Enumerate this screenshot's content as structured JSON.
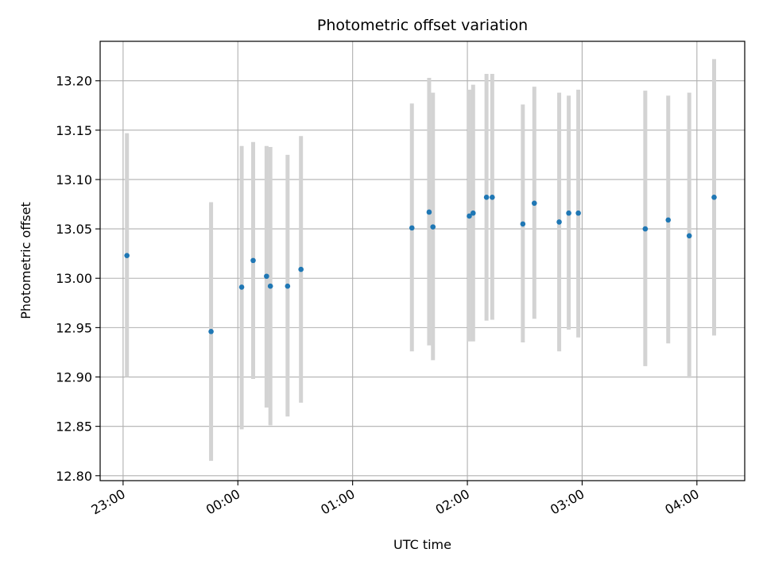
{
  "chart_data": {
    "type": "scatter",
    "title": "Photometric offset variation",
    "xlabel": "UTC time",
    "ylabel": "Photometric offset",
    "grid": true,
    "x_domain": [
      "22:48",
      "04:25"
    ],
    "x_ticks": [
      "23:00",
      "00:00",
      "01:00",
      "02:00",
      "03:00",
      "04:00"
    ],
    "ylim": [
      12.795,
      13.24
    ],
    "y_ticks": [
      12.8,
      12.85,
      12.9,
      12.95,
      13.0,
      13.05,
      13.1,
      13.15,
      13.2
    ],
    "colors": {
      "point": "#1f77b4",
      "error_bar": "#d3d3d3",
      "grid": "#b0b0b0"
    },
    "series": [
      {
        "points": [
          {
            "x": "23:02",
            "y": 13.023,
            "ymin": 12.9,
            "ymax": 13.147
          },
          {
            "x": "23:46",
            "y": 12.946,
            "ymin": 12.815,
            "ymax": 13.077
          },
          {
            "x": "00:02",
            "y": 12.991,
            "ymin": 12.847,
            "ymax": 13.134
          },
          {
            "x": "00:08",
            "y": 13.018,
            "ymin": 12.898,
            "ymax": 13.138
          },
          {
            "x": "00:15",
            "y": 13.002,
            "ymin": 12.869,
            "ymax": 13.134
          },
          {
            "x": "00:17",
            "y": 12.992,
            "ymin": 12.851,
            "ymax": 13.133
          },
          {
            "x": "00:26",
            "y": 12.992,
            "ymin": 12.86,
            "ymax": 13.125
          },
          {
            "x": "00:33",
            "y": 13.009,
            "ymin": 12.874,
            "ymax": 13.144
          },
          {
            "x": "01:31",
            "y": 13.051,
            "ymin": 12.926,
            "ymax": 13.177
          },
          {
            "x": "01:40",
            "y": 13.067,
            "ymin": 12.932,
            "ymax": 13.203
          },
          {
            "x": "01:42",
            "y": 13.052,
            "ymin": 12.917,
            "ymax": 13.188
          },
          {
            "x": "02:01",
            "y": 13.063,
            "ymin": 12.936,
            "ymax": 13.191
          },
          {
            "x": "02:03",
            "y": 13.066,
            "ymin": 12.936,
            "ymax": 13.196
          },
          {
            "x": "02:10",
            "y": 13.082,
            "ymin": 12.957,
            "ymax": 13.207
          },
          {
            "x": "02:13",
            "y": 13.082,
            "ymin": 12.958,
            "ymax": 13.207
          },
          {
            "x": "02:29",
            "y": 13.055,
            "ymin": 12.935,
            "ymax": 13.176
          },
          {
            "x": "02:35",
            "y": 13.076,
            "ymin": 12.959,
            "ymax": 13.194
          },
          {
            "x": "02:48",
            "y": 13.057,
            "ymin": 12.926,
            "ymax": 13.188
          },
          {
            "x": "02:53",
            "y": 13.066,
            "ymin": 12.948,
            "ymax": 13.185
          },
          {
            "x": "02:58",
            "y": 13.066,
            "ymin": 12.94,
            "ymax": 13.191
          },
          {
            "x": "03:33",
            "y": 13.05,
            "ymin": 12.911,
            "ymax": 13.19
          },
          {
            "x": "03:45",
            "y": 13.059,
            "ymin": 12.934,
            "ymax": 13.185
          },
          {
            "x": "03:56",
            "y": 13.043,
            "ymin": 12.899,
            "ymax": 13.188
          },
          {
            "x": "04:09",
            "y": 13.082,
            "ymin": 12.942,
            "ymax": 13.222
          }
        ]
      }
    ]
  }
}
